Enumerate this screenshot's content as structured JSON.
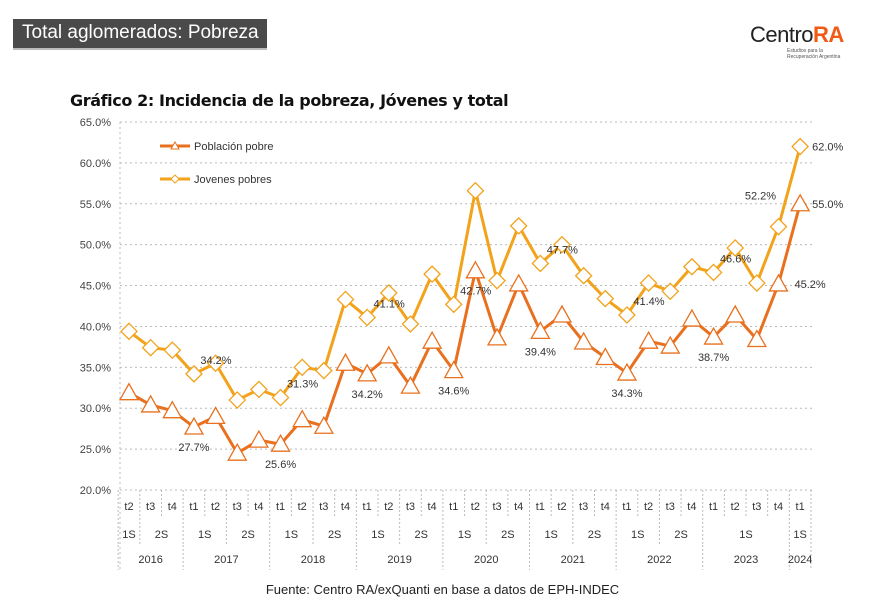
{
  "banner": "Total aglomerados: Pobreza",
  "logo": {
    "name_a": "Centro",
    "name_b": "RA",
    "tagline_1": "Estudios para la",
    "tagline_2": "Recuperación Argentina"
  },
  "source": "Fuente: Centro RA/exQuanti en base a datos de EPH-INDEC",
  "chart_data": {
    "type": "line",
    "title": "Gráfico 2: Incidencia de la pobreza, Jóvenes y total",
    "ylim": [
      20,
      65
    ],
    "yticks": [
      "20.0%",
      "25.0%",
      "30.0%",
      "35.0%",
      "40.0%",
      "45.0%",
      "50.0%",
      "55.0%",
      "60.0%",
      "65.0%"
    ],
    "grid": true,
    "legend_placement": "top-left",
    "categories": [
      "2016 t2",
      "2016 t3",
      "2016 t4",
      "2017 t1",
      "2017 t2",
      "2017 t3",
      "2017 t4",
      "2018 t1",
      "2018 t2",
      "2018 t3",
      "2018 t4",
      "2019 t1",
      "2019 t2",
      "2019 t3",
      "2019 t4",
      "2020 t1",
      "2020 t2",
      "2020 t3",
      "2020 t4",
      "2021 t1",
      "2021 t2",
      "2021 t3",
      "2021 t4",
      "2022 t1",
      "2022 t2",
      "2022 t3",
      "2022 t4",
      "2023 t1",
      "2023 t2",
      "2023 t3",
      "2023 t4",
      "2024 t1"
    ],
    "quarter_labels": [
      "t2",
      "t3",
      "t4",
      "t1",
      "t2",
      "t3",
      "t4",
      "t1",
      "t2",
      "t3",
      "t4",
      "t1",
      "t2",
      "t3",
      "t4",
      "t1",
      "t2",
      "t3",
      "t4",
      "t1",
      "t2",
      "t3",
      "t4",
      "t1",
      "t2",
      "t3",
      "t4",
      "t1",
      "t2",
      "t3",
      "t4",
      "t1"
    ],
    "semester_groups": [
      {
        "label": "1S",
        "start": 0,
        "end": 0
      },
      {
        "label": "2S",
        "start": 1,
        "end": 2
      },
      {
        "label": "1S",
        "start": 3,
        "end": 4
      },
      {
        "label": "2S",
        "start": 5,
        "end": 6
      },
      {
        "label": "1S",
        "start": 7,
        "end": 8
      },
      {
        "label": "2S",
        "start": 9,
        "end": 10
      },
      {
        "label": "1S",
        "start": 11,
        "end": 12
      },
      {
        "label": "2S",
        "start": 13,
        "end": 14
      },
      {
        "label": "1S",
        "start": 15,
        "end": 16
      },
      {
        "label": "2S",
        "start": 17,
        "end": 18
      },
      {
        "label": "1S",
        "start": 19,
        "end": 20
      },
      {
        "label": "2S",
        "start": 21,
        "end": 22
      },
      {
        "label": "1S",
        "start": 23,
        "end": 24
      },
      {
        "label": "2S",
        "start": 25,
        "end": 26
      },
      {
        "label": "1S",
        "start": 27,
        "end": 30
      },
      {
        "label": "1S",
        "start": 31,
        "end": 31
      }
    ],
    "year_groups": [
      {
        "label": "2016",
        "start": 0,
        "end": 2
      },
      {
        "label": "2017",
        "start": 3,
        "end": 6
      },
      {
        "label": "2018",
        "start": 7,
        "end": 10
      },
      {
        "label": "2019",
        "start": 11,
        "end": 14
      },
      {
        "label": "2020",
        "start": 15,
        "end": 18
      },
      {
        "label": "2021",
        "start": 19,
        "end": 22
      },
      {
        "label": "2022",
        "start": 23,
        "end": 26
      },
      {
        "label": "2023",
        "start": 27,
        "end": 30
      },
      {
        "label": "2024",
        "start": 31,
        "end": 31
      }
    ],
    "series": [
      {
        "name": "Población pobre",
        "color": "#e8701e",
        "marker": "triangle",
        "values": [
          31.9,
          30.4,
          29.7,
          27.7,
          29.0,
          24.5,
          26.1,
          25.6,
          28.6,
          27.8,
          35.5,
          34.2,
          36.4,
          32.7,
          38.2,
          34.6,
          46.8,
          38.6,
          45.2,
          39.4,
          41.4,
          38.1,
          36.2,
          34.3,
          38.2,
          37.6,
          40.9,
          38.7,
          41.4,
          38.4,
          45.2,
          55.0
        ],
        "labels": [
          {
            "index": 3,
            "text": "27.7%"
          },
          {
            "index": 7,
            "text": "25.6%"
          },
          {
            "index": 11,
            "text": "34.2%"
          },
          {
            "index": 15,
            "text": "34.6%"
          },
          {
            "index": 19,
            "text": "39.4%"
          },
          {
            "index": 23,
            "text": "34.3%"
          },
          {
            "index": 27,
            "text": "38.7%"
          },
          {
            "index": 30,
            "text": "45.2%"
          },
          {
            "index": 31,
            "text": "55.0%"
          }
        ]
      },
      {
        "name": "Jovenes pobres",
        "color": "#f2a21b",
        "marker": "diamond",
        "values": [
          39.4,
          37.4,
          37.1,
          34.2,
          35.5,
          31.0,
          32.3,
          31.3,
          35.0,
          34.6,
          43.3,
          41.1,
          44.1,
          40.3,
          46.4,
          42.7,
          56.6,
          45.6,
          52.3,
          47.7,
          50.0,
          46.2,
          43.4,
          41.4,
          45.3,
          44.3,
          47.3,
          46.6,
          49.6,
          45.3,
          52.2,
          62.0
        ],
        "labels": [
          {
            "index": 3,
            "text": "34.2%"
          },
          {
            "index": 7,
            "text": "31.3%"
          },
          {
            "index": 11,
            "text": "41.1%"
          },
          {
            "index": 15,
            "text": "42.7%"
          },
          {
            "index": 19,
            "text": "47.7%"
          },
          {
            "index": 23,
            "text": "41.4%"
          },
          {
            "index": 27,
            "text": "46.6%"
          },
          {
            "index": 30,
            "text": "52.2%"
          },
          {
            "index": 31,
            "text": "62.0%"
          }
        ]
      }
    ]
  }
}
